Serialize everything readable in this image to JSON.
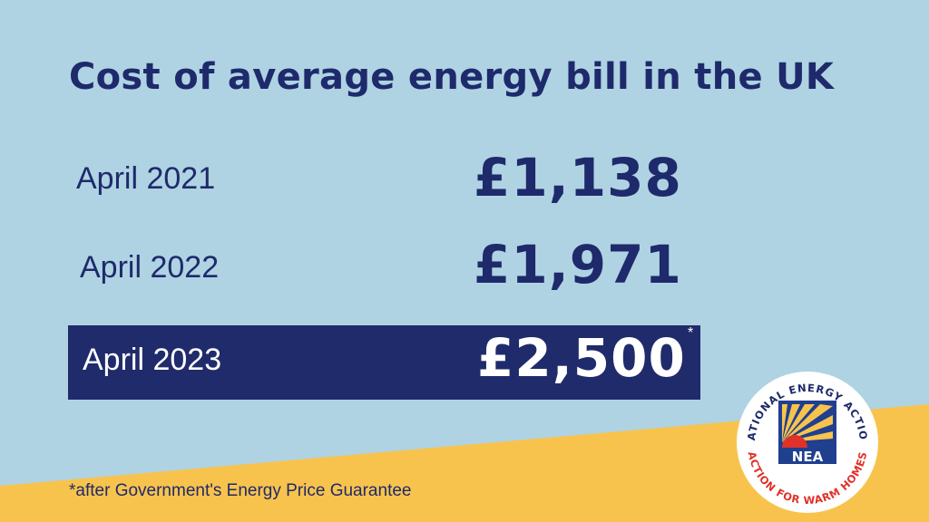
{
  "title": "Cost of average energy bill in the UK",
  "rows": [
    {
      "label": "April 2021",
      "value": "£1,138"
    },
    {
      "label": "April 2022",
      "value": "£1,971"
    },
    {
      "label": "April 2023",
      "value": "£2,500",
      "marker": "*"
    }
  ],
  "footnote": "*after Government's Energy Price Guarantee",
  "logo": {
    "top_text": "NATIONAL ENERGY ACTION",
    "bottom_text": "ACTION FOR WARM HOMES",
    "abbr": "NEA"
  },
  "colors": {
    "background": "#afd3e2",
    "wedge": "#f8c34d",
    "navy": "#1e2a6b",
    "logo_red": "#e0312a"
  }
}
